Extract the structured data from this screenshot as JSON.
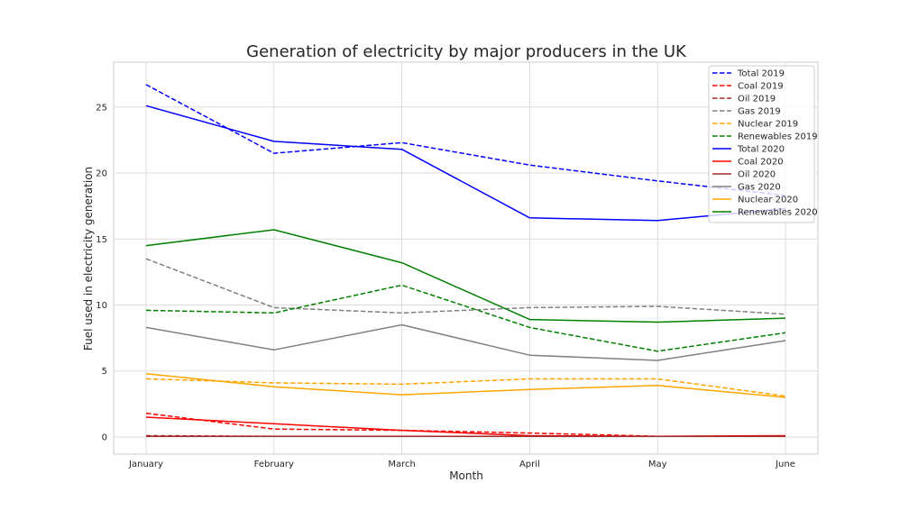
{
  "chart_data": {
    "type": "line",
    "title": "Generation of electricity by major producers in the UK",
    "xlabel": "Month",
    "ylabel": "Fuel used in electricity generation",
    "categories": [
      "January",
      "February",
      "March",
      "April",
      "May",
      "June"
    ],
    "y_ticks": [
      "0",
      "5",
      "10",
      "15",
      "20",
      "25"
    ],
    "ylim": [
      -1.3,
      28.4
    ],
    "grid": true,
    "legend_position": "top-right",
    "series": [
      {
        "name": "Total 2019",
        "color": "#0000ff",
        "dash": true,
        "values": [
          26.7,
          21.5,
          22.3,
          20.6,
          19.4,
          18.3
        ]
      },
      {
        "name": "Coal 2019",
        "color": "#ff0000",
        "dash": true,
        "values": [
          1.8,
          0.6,
          0.5,
          0.3,
          0.05,
          0.05
        ]
      },
      {
        "name": "Oil 2019",
        "color": "#a52a2a",
        "dash": true,
        "values": [
          0.1,
          0.05,
          0.05,
          0.05,
          0.05,
          0.05
        ]
      },
      {
        "name": "Gas 2019",
        "color": "#808080",
        "dash": true,
        "values": [
          13.5,
          9.8,
          9.4,
          9.8,
          9.9,
          9.3
        ]
      },
      {
        "name": "Nuclear 2019",
        "color": "#ffa500",
        "dash": true,
        "values": [
          4.4,
          4.1,
          4.0,
          4.4,
          4.4,
          3.1
        ]
      },
      {
        "name": "Renewables 2019",
        "color": "#008000",
        "dash": true,
        "values": [
          9.6,
          9.4,
          11.5,
          8.3,
          6.5,
          7.9
        ]
      },
      {
        "name": "Total 2020",
        "color": "#0000ff",
        "dash": false,
        "values": [
          25.1,
          22.4,
          21.8,
          16.6,
          16.4,
          17.3
        ]
      },
      {
        "name": "Coal 2020",
        "color": "#ff0000",
        "dash": false,
        "values": [
          1.5,
          1.0,
          0.5,
          0.1,
          0.05,
          0.1
        ]
      },
      {
        "name": "Oil 2020",
        "color": "#a52a2a",
        "dash": false,
        "values": [
          0.05,
          0.05,
          0.05,
          0.05,
          0.05,
          0.05
        ]
      },
      {
        "name": "Gas 2020",
        "color": "#808080",
        "dash": false,
        "values": [
          8.3,
          6.6,
          8.5,
          6.2,
          5.8,
          7.3
        ]
      },
      {
        "name": "Nuclear 2020",
        "color": "#ffa500",
        "dash": false,
        "values": [
          4.8,
          3.8,
          3.2,
          3.6,
          3.9,
          3.0
        ]
      },
      {
        "name": "Renewables 2020",
        "color": "#008000",
        "dash": false,
        "values": [
          14.5,
          15.7,
          13.2,
          8.9,
          8.7,
          9.0
        ]
      }
    ]
  }
}
